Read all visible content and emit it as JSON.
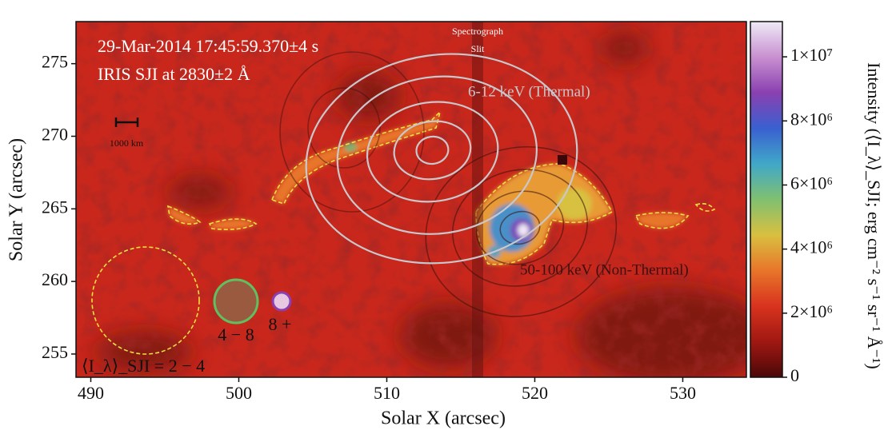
{
  "chart_data": {
    "type": "image",
    "xlabel": "Solar X (arcsec)",
    "ylabel": "Solar Y (arcsec)",
    "xlim": [
      489.0,
      534.3
    ],
    "ylim": [
      253.4,
      277.9
    ],
    "xticks": [
      490,
      500,
      510,
      520,
      530
    ],
    "yticks": [
      255,
      260,
      265,
      270,
      275
    ],
    "colorbar": {
      "label": "Intensity (⟨I_λ⟩_SJI; erg cm⁻² s⁻¹ sr⁻¹ Å⁻¹)",
      "lim": [
        0,
        11100000
      ],
      "ticks": [
        0,
        {
          "value": 2000000,
          "label": "2×10⁶"
        },
        {
          "value": 4000000,
          "label": "4×10⁶"
        },
        {
          "value": 6000000,
          "label": "6×10⁶"
        },
        {
          "value": 8000000,
          "label": "8×10⁶"
        },
        {
          "value": 10000000,
          "label": "1×10⁷"
        }
      ],
      "colormap": [
        "#4a0808",
        "#a01812",
        "#d8331e",
        "#e8752a",
        "#d8c040",
        "#80c070",
        "#40a8c8",
        "#3a60d0",
        "#8a40b0",
        "#c890d0",
        "#eeeaf6"
      ]
    },
    "annotations": [
      "29-Mar-2014 17:45:59.370±4 s",
      "IRIS SJI at 2830±2 Å",
      "Spectrograph",
      "Slit",
      "6-12 keV (Thermal)",
      "50-100 keV (Non-Thermal)",
      "1000 km",
      "4 − 8",
      "8 +",
      "⟨I_λ⟩_SJI = 2 − 4"
    ]
  }
}
